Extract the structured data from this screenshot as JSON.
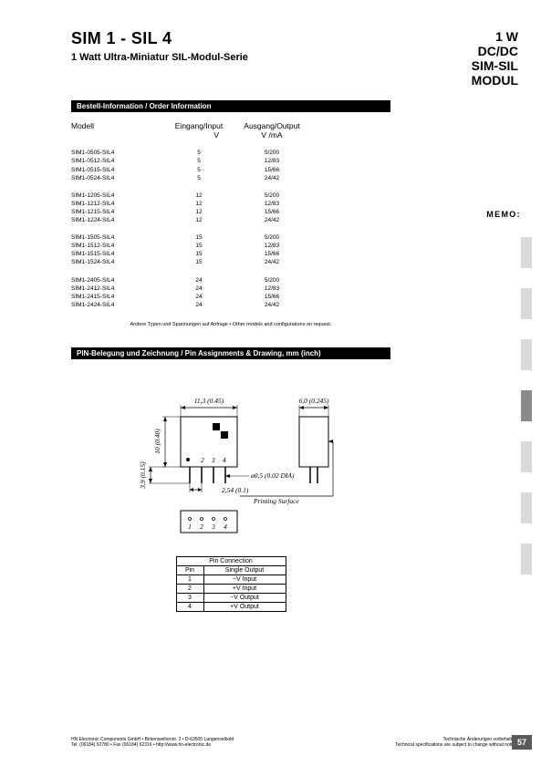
{
  "header": {
    "main_title": "SIM 1 - SIL 4",
    "subtitle": "1 Watt Ultra-Miniatur SIL-Modul-Serie",
    "right_title_l1": "1 W",
    "right_title_l2": "DC/DC",
    "right_title_l3": "SIM-SIL",
    "right_title_l4": "MODUL"
  },
  "sidebar": {
    "memo": "MEMO:"
  },
  "sections": {
    "order_info_bar": "Bestell-Information / Order Information",
    "pin_bar": "PIN-Belegung  und Zeichnung / Pin Assignments & Drawing,  mm (inch)"
  },
  "table": {
    "headers": {
      "c1": "Modell",
      "c2": "Eingang/Input",
      "c3": "Ausgang/Output"
    },
    "subheaders": {
      "c2": "V",
      "c3": "V /mA"
    },
    "groups": [
      [
        {
          "model": "SIM1-0505-SIL4",
          "vin": "5",
          "out": "5/200"
        },
        {
          "model": "SIM1-0512-SIL4",
          "vin": "5",
          "out": "12/83"
        },
        {
          "model": "SIM1-0515-SIL4",
          "vin": "5",
          "out": "15/66"
        },
        {
          "model": "SIM1-0524-SIL4",
          "vin": "5",
          "out": "24/42"
        }
      ],
      [
        {
          "model": "SIM1-1205-SIL4",
          "vin": "12",
          "out": "5/200"
        },
        {
          "model": "SIM1-1212-SIL4",
          "vin": "12",
          "out": "12/83"
        },
        {
          "model": "SIM1-1215-SIL4",
          "vin": "12",
          "out": "15/66"
        },
        {
          "model": "SIM1-1224-SIL4",
          "vin": "12",
          "out": "24/42"
        }
      ],
      [
        {
          "model": "SIM1-1505-SIL4",
          "vin": "15",
          "out": "5/200"
        },
        {
          "model": "SIM1-1512-SIL4",
          "vin": "15",
          "out": "12/83"
        },
        {
          "model": "SIM1-1515-SIL4",
          "vin": "15",
          "out": "15/66"
        },
        {
          "model": "SIM1-1524-SIL4",
          "vin": "15",
          "out": "24/42"
        }
      ],
      [
        {
          "model": "SIM1-2405-SIL4",
          "vin": "24",
          "out": "5/200"
        },
        {
          "model": "SIM1-2412-SIL4",
          "vin": "24",
          "out": "12/83"
        },
        {
          "model": "SIM1-2415-SIL4",
          "vin": "24",
          "out": "15/66"
        },
        {
          "model": "SIM1-2424-SIL4",
          "vin": "24",
          "out": "24/42"
        }
      ]
    ],
    "note": "Andere Typen und Spannungen auf Anfrage • Other models and configurations on request."
  },
  "drawing": {
    "dim_width_main": "11,3 (0.45)",
    "dim_width_side": "6,0 (0.245)",
    "dim_height_main": "10 (0.40)",
    "dim_height_pins": "3,9 (0.15)",
    "dim_pitch": "2,54 (0.1)",
    "dim_pin_dia": "ø0,5 (0.02 DIA)",
    "printing_surface": "Printing Surface",
    "pin_nums_front": [
      "1",
      "2",
      "3",
      "4"
    ],
    "pin_nums_bottom": [
      "1",
      "2",
      "3",
      "4"
    ]
  },
  "pin_table": {
    "title": "Pin Connection",
    "col1": "Pin",
    "col2": "Single Output",
    "rows": [
      {
        "pin": "1",
        "desc": "−V Input"
      },
      {
        "pin": "2",
        "desc": "+V Input"
      },
      {
        "pin": "3",
        "desc": "−V Output"
      },
      {
        "pin": "4",
        "desc": "+V Output"
      }
    ]
  },
  "footer": {
    "left_l1": "HN Electronic Components GmbH • Birkenweiherstr. 2 • D-63505 Langenselbold",
    "left_l2": "Tel. (06184) 92780 • Fax (06184) 62316 • http://www.hn-electronic.de",
    "right_l1": "Technische Änderungen vorbehalten.",
    "right_l2": "Technical specifications are subject to change without notice.",
    "page_num": "57"
  },
  "colors": {
    "bar_bg": "#000000",
    "bar_fg": "#ffffff",
    "side_light": "#d9d9d9",
    "side_dark": "#8a8a8a",
    "pagenum_bg": "#5a5a5a"
  }
}
